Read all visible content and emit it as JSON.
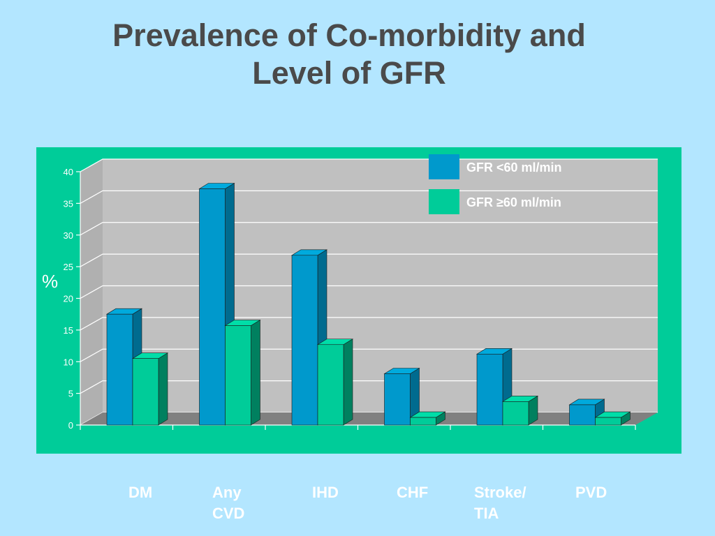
{
  "title_lines": [
    "Prevalence of Co-morbidity and",
    "Level of GFR"
  ],
  "chart_data": {
    "type": "bar",
    "title": "Prevalence of Co-morbidity and Level of GFR",
    "ylabel": "%",
    "xlabel": "",
    "ylim": [
      0,
      40
    ],
    "yticks": [
      0,
      5,
      10,
      15,
      20,
      25,
      30,
      35,
      40
    ],
    "grid": true,
    "legend_placement": "top-right",
    "categories": [
      "DM",
      "Any\nCVD",
      "IHD",
      "CHF",
      "Stroke/\nTIA",
      "PVD"
    ],
    "series": [
      {
        "name": "GFR <60 ml/min",
        "values": [
          17.5,
          37.3,
          26.8,
          8.1,
          11.2,
          3.2
        ],
        "color": "#0099cc"
      },
      {
        "name": "GFR ≥60 ml/min",
        "values": [
          10.5,
          15.7,
          12.7,
          1.2,
          3.7,
          1.2
        ],
        "color": "#00cc99"
      }
    ]
  },
  "colors": {
    "background": "#b3e6ff",
    "panel": "#00cc99",
    "plot_area": "#c0c0c0",
    "floor": "#808080",
    "title_text": "#4a4a4a",
    "axis_text": "#ffffff"
  }
}
